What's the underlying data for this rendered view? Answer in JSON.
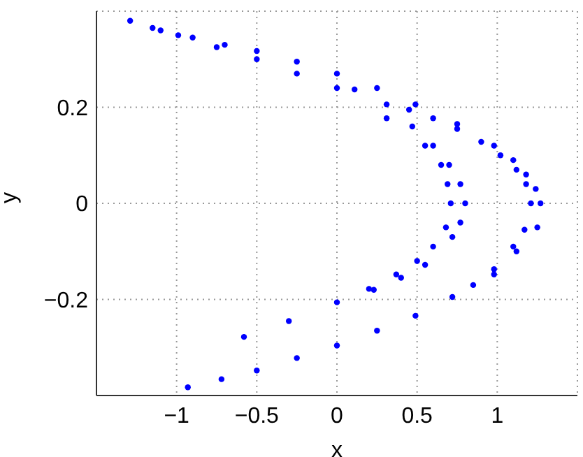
{
  "chart_data": {
    "type": "scatter",
    "xlabel": "x",
    "ylabel": "y",
    "xlim": [
      -1.5,
      1.5
    ],
    "ylim": [
      -0.4,
      0.4
    ],
    "xticks": [
      {
        "value": -1,
        "label": "−1"
      },
      {
        "value": -0.5,
        "label": "−0.5"
      },
      0,
      0.5,
      1
    ],
    "yticks": [
      {
        "value": -0.2,
        "label": "−0.2"
      },
      0,
      0.2
    ],
    "grid": true,
    "marker": "circle",
    "series": [
      {
        "color": "#0000ff",
        "x": [
          -1.29,
          -1.1,
          -0.9,
          -0.7,
          -0.5,
          -0.25,
          0,
          0.25,
          0.49,
          0.75,
          0.98,
          1.1,
          1.18,
          1.24,
          1.27,
          1.25,
          1.12,
          0.98,
          0.85,
          0.72,
          0.49,
          0.25,
          0,
          -0.25,
          -0.5,
          -0.72,
          -0.93,
          -1.15,
          -0.99,
          -0.75,
          -0.5,
          -0.25,
          0,
          0.31,
          0.55,
          0.65,
          0.69,
          0.71,
          0.68,
          0.6,
          0.5,
          0.37,
          0.2,
          0,
          -0.3,
          -0.58,
          0.11,
          0.31,
          0.47,
          0.6,
          0.7,
          0.77,
          0.8,
          0.77,
          0.72,
          0.55,
          0.4,
          0.23,
          0.45,
          0.6,
          0.75,
          0.9,
          1.02,
          1.12,
          1.18,
          1.21,
          1.17,
          1.1,
          0.98
        ],
        "values": [
          0.38,
          0.36,
          0.345,
          0.33,
          0.317,
          0.295,
          0.27,
          0.24,
          0.206,
          0.165,
          0.12,
          0.09,
          0.06,
          0.03,
          0,
          -0.05,
          -0.1,
          -0.148,
          -0.17,
          -0.195,
          -0.234,
          -0.265,
          -0.296,
          -0.322,
          -0.348,
          -0.366,
          -0.383,
          0.365,
          0.35,
          0.325,
          0.3,
          0.27,
          0.24,
          0.177,
          0.12,
          0.08,
          0.04,
          0,
          -0.05,
          -0.09,
          -0.12,
          -0.148,
          -0.178,
          -0.206,
          -0.245,
          -0.278,
          0.237,
          0.206,
          0.16,
          0.12,
          0.08,
          0.04,
          0,
          -0.04,
          -0.07,
          -0.128,
          -0.155,
          -0.18,
          0.195,
          0.177,
          0.155,
          0.128,
          0.1,
          0.07,
          0.04,
          0,
          -0.055,
          -0.09,
          -0.137
        ]
      }
    ]
  }
}
